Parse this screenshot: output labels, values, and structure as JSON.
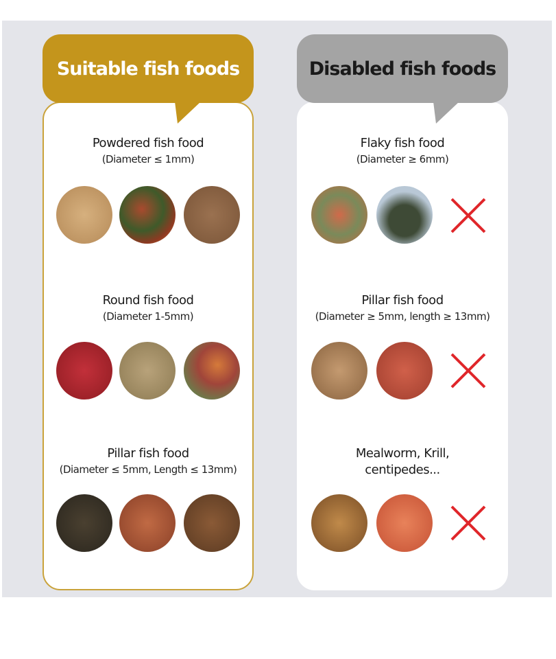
{
  "suitable": {
    "header": "Suitable fish foods",
    "sections": [
      {
        "title": "Powdered fish food",
        "subtitle": "(Diameter ≤ 1mm)",
        "images": [
          "light-tan-powder",
          "red-green-flakes-powder",
          "brown-powder"
        ]
      },
      {
        "title": "Round fish food",
        "subtitle": "(Diameter 1-5mm)",
        "images": [
          "red-round-pellets",
          "tan-round-pellets",
          "mixed-pellets-with-scoop"
        ]
      },
      {
        "title": "Pillar fish food",
        "subtitle": "(Diameter ≤ 5mm, Length ≤ 13mm)",
        "images": [
          "dark-pellets",
          "reddish-brown-pellets",
          "brown-sticks"
        ]
      }
    ],
    "color": "#c4951c"
  },
  "disabled": {
    "header": "Disabled fish foods",
    "sections": [
      {
        "title": "Flaky fish food",
        "subtitle": "(Diameter ≥ 6mm)",
        "images": [
          "colorful-flakes",
          "green-algae-wafers"
        ],
        "mark": "red-x-icon"
      },
      {
        "title": "Pillar fish food",
        "subtitle": "(Diameter ≥ 5mm, length ≥ 13mm)",
        "images": [
          "tan-long-sticks",
          "red-long-sticks"
        ],
        "mark": "red-x-icon"
      },
      {
        "title": "Mealworm, Krill,",
        "title2": "centipedes...",
        "images": [
          "mealworms",
          "krill"
        ],
        "mark": "red-x-icon"
      }
    ],
    "color": "#a4a4a4"
  }
}
